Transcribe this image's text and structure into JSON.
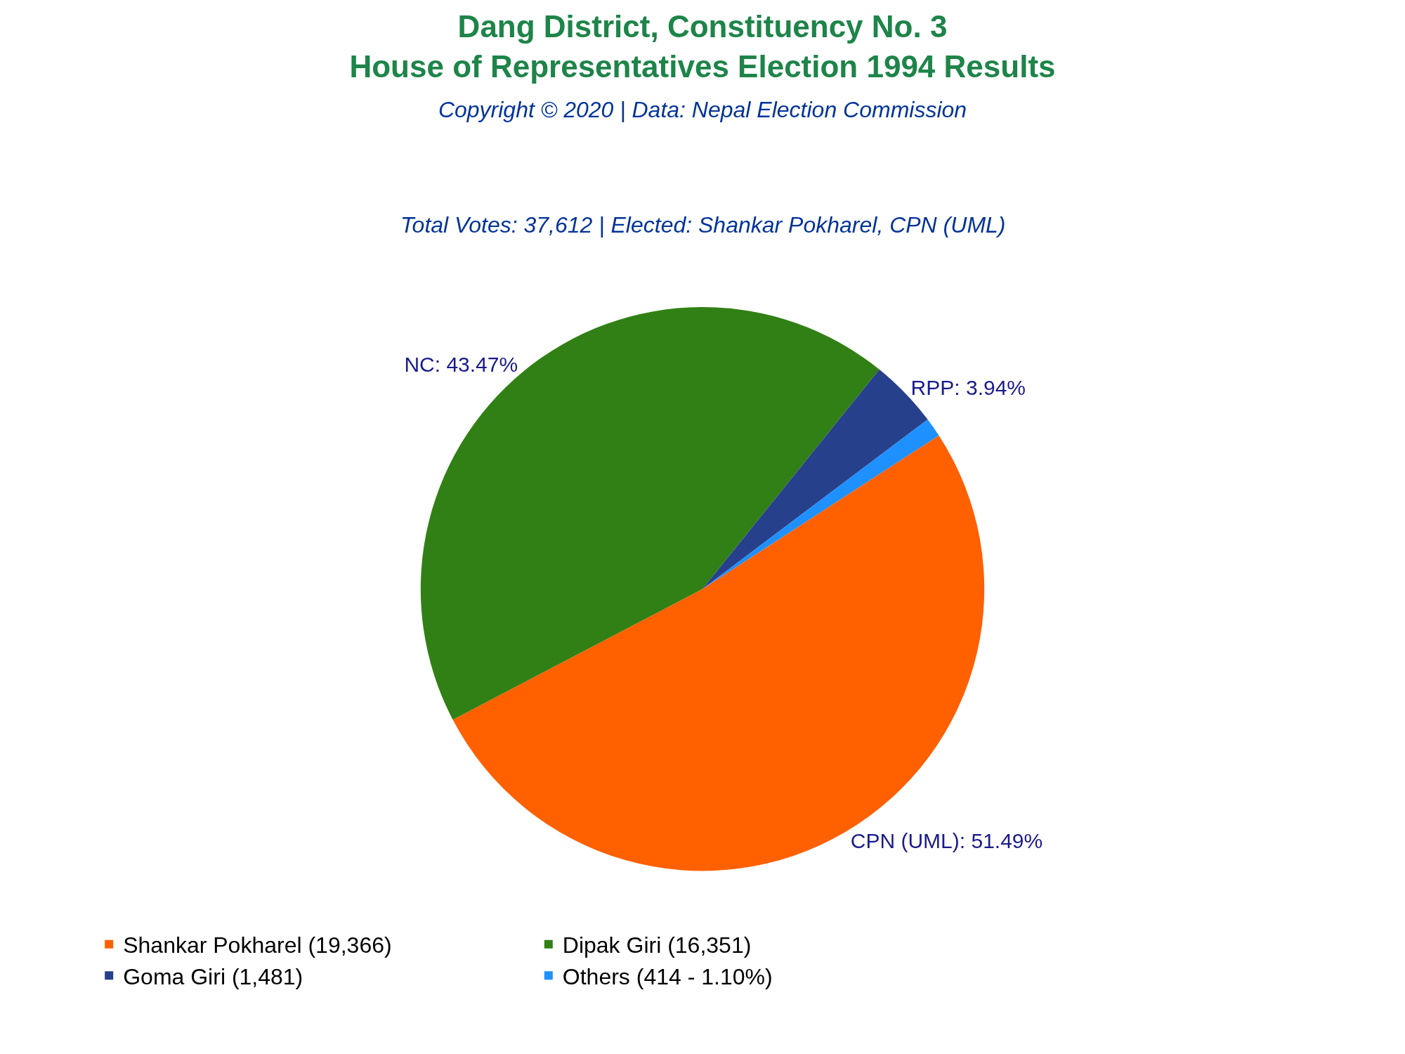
{
  "chart_data": {
    "type": "pie",
    "title": "Dang District, Constituency No. 3\nHouse of Representatives Election 1994 Results",
    "subtitle": "Copyright © 2020 | Data: Nepal Election Commission",
    "annotations": [
      "Total Votes: 37,612 | Elected: Shankar Pokharel, CPN (UML)"
    ],
    "categories": [
      "Shankar Pokharel (19,366)",
      "Dipak Giri (16,351)",
      "Goma Giri (1,481)",
      "Others (414 - 1.10%)"
    ],
    "values": [
      51.49,
      43.47,
      3.94,
      1.1
    ],
    "value_labels": [
      "CPN (UML): 51.49%",
      "NC: 43.47%",
      "RPP: 3.94%",
      null
    ],
    "colors": [
      "#ff6000",
      "#318015",
      "#27408b",
      "#1e90ff"
    ],
    "legend": "bottom"
  }
}
